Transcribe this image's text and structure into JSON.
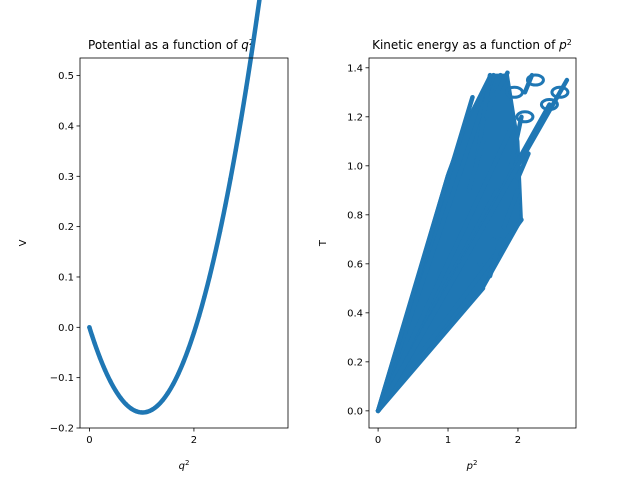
{
  "chart_data": [
    {
      "type": "scatter",
      "title": "Potential as a function of q²",
      "title_text": "Potential as a function of ",
      "title_var": "q",
      "title_sup": "2",
      "xlabel_var": "q",
      "xlabel_sup": "2",
      "ylabel": "V",
      "xlim": [
        -0.18,
        3.8
      ],
      "ylim": [
        -0.2,
        0.535
      ],
      "xticks": [
        0,
        2
      ],
      "yticks": [
        -0.2,
        -0.1,
        0.0,
        0.1,
        0.2,
        0.3,
        0.4,
        0.5
      ],
      "ytick_labels": [
        "−0.2",
        "−0.1",
        "0.0",
        "0.1",
        "0.2",
        "0.3",
        "0.4",
        "0.5"
      ],
      "xtick_labels": [
        "0",
        "2"
      ],
      "grid": false,
      "color": "#1f77b4",
      "series": [
        {
          "x": [
            0.0,
            0.05,
            0.1,
            0.2,
            0.3,
            0.4,
            0.5,
            0.6,
            0.7,
            0.8,
            0.9,
            1.0,
            1.1,
            1.2,
            1.3,
            1.4,
            1.5,
            1.6,
            1.7,
            1.8,
            1.9,
            2.0,
            2.1,
            2.2,
            2.3,
            2.4,
            2.5,
            2.6,
            2.7,
            2.8,
            2.9,
            3.0,
            3.1,
            3.2,
            3.3,
            3.4,
            3.5,
            3.6,
            3.65
          ],
          "y": [
            0.0,
            -0.024,
            -0.046,
            -0.083,
            -0.112,
            -0.135,
            -0.151,
            -0.161,
            -0.166,
            -0.168,
            -0.167,
            -0.165,
            -0.16,
            -0.15,
            -0.137,
            -0.122,
            -0.104,
            -0.083,
            -0.059,
            -0.033,
            -0.004,
            0.027,
            0.061,
            0.097,
            0.135,
            0.175,
            0.217,
            0.261,
            0.307,
            0.354,
            0.402,
            0.45,
            0.498,
            0.45,
            0.47,
            0.48,
            0.49,
            0.495,
            0.5
          ]
        }
      ]
    },
    {
      "type": "scatter",
      "title": "Kinetic energy as a function of p²",
      "title_text": "Kinetic energy as a function of ",
      "title_var": "p",
      "title_sup": "2",
      "xlabel_var": "p",
      "xlabel_sup": "2",
      "ylabel": "T",
      "xlim": [
        -0.13,
        2.83
      ],
      "ylim": [
        -0.07,
        1.44
      ],
      "xticks": [
        0,
        1,
        2
      ],
      "xtick_labels": [
        "0",
        "1",
        "2"
      ],
      "yticks": [
        0.0,
        0.2,
        0.4,
        0.6,
        0.8,
        1.0,
        1.2,
        1.4
      ],
      "ytick_labels": [
        "0.0",
        "0.2",
        "0.4",
        "0.6",
        "0.8",
        "1.0",
        "1.2",
        "1.4"
      ],
      "grid": false,
      "color": "#1f77b4",
      "series": [
        {
          "name": "",
          "segments": [
            [
              [
                0.0,
                0.0
              ],
              [
                1.65,
                1.37
              ]
            ],
            [
              [
                0.0,
                0.0
              ],
              [
                1.35,
                1.28
              ]
            ],
            [
              [
                0.0,
                0.0
              ],
              [
                1.0,
                0.96
              ]
            ],
            [
              [
                0.0,
                0.0
              ],
              [
                1.5,
                0.5
              ]
            ],
            [
              [
                0.0,
                0.0
              ],
              [
                1.2,
                0.6
              ]
            ],
            [
              [
                0.0,
                0.0
              ],
              [
                1.7,
                0.9
              ]
            ],
            [
              [
                0.0,
                0.0
              ],
              [
                2.05,
                0.78
              ]
            ],
            [
              [
                0.0,
                0.0
              ],
              [
                1.9,
                1.15
              ]
            ],
            [
              [
                0.0,
                0.0
              ],
              [
                2.45,
                1.25
              ]
            ],
            [
              [
                0.0,
                0.0
              ],
              [
                2.7,
                1.35
              ]
            ],
            [
              [
                1.4,
                1.0
              ],
              [
                1.6,
                1.37
              ]
            ],
            [
              [
                1.55,
                1.2
              ],
              [
                1.75,
                1.37
              ]
            ],
            [
              [
                1.7,
                1.3
              ],
              [
                1.85,
                1.38
              ]
            ],
            [
              [
                2.1,
                1.3
              ],
              [
                2.2,
                1.37
              ]
            ],
            [
              [
                1.3,
                0.9
              ],
              [
                1.5,
                1.1
              ]
            ],
            [
              [
                1.45,
                0.6
              ],
              [
                1.65,
                0.7
              ]
            ],
            [
              [
                1.6,
                0.55
              ],
              [
                1.75,
                0.7
              ]
            ],
            [
              [
                1.8,
                0.75
              ],
              [
                2.0,
                0.9
              ]
            ],
            [
              [
                2.0,
                0.95
              ],
              [
                2.15,
                1.05
              ]
            ],
            [
              [
                1.9,
                1.0
              ],
              [
                2.05,
                1.2
              ]
            ]
          ]
        }
      ]
    }
  ]
}
